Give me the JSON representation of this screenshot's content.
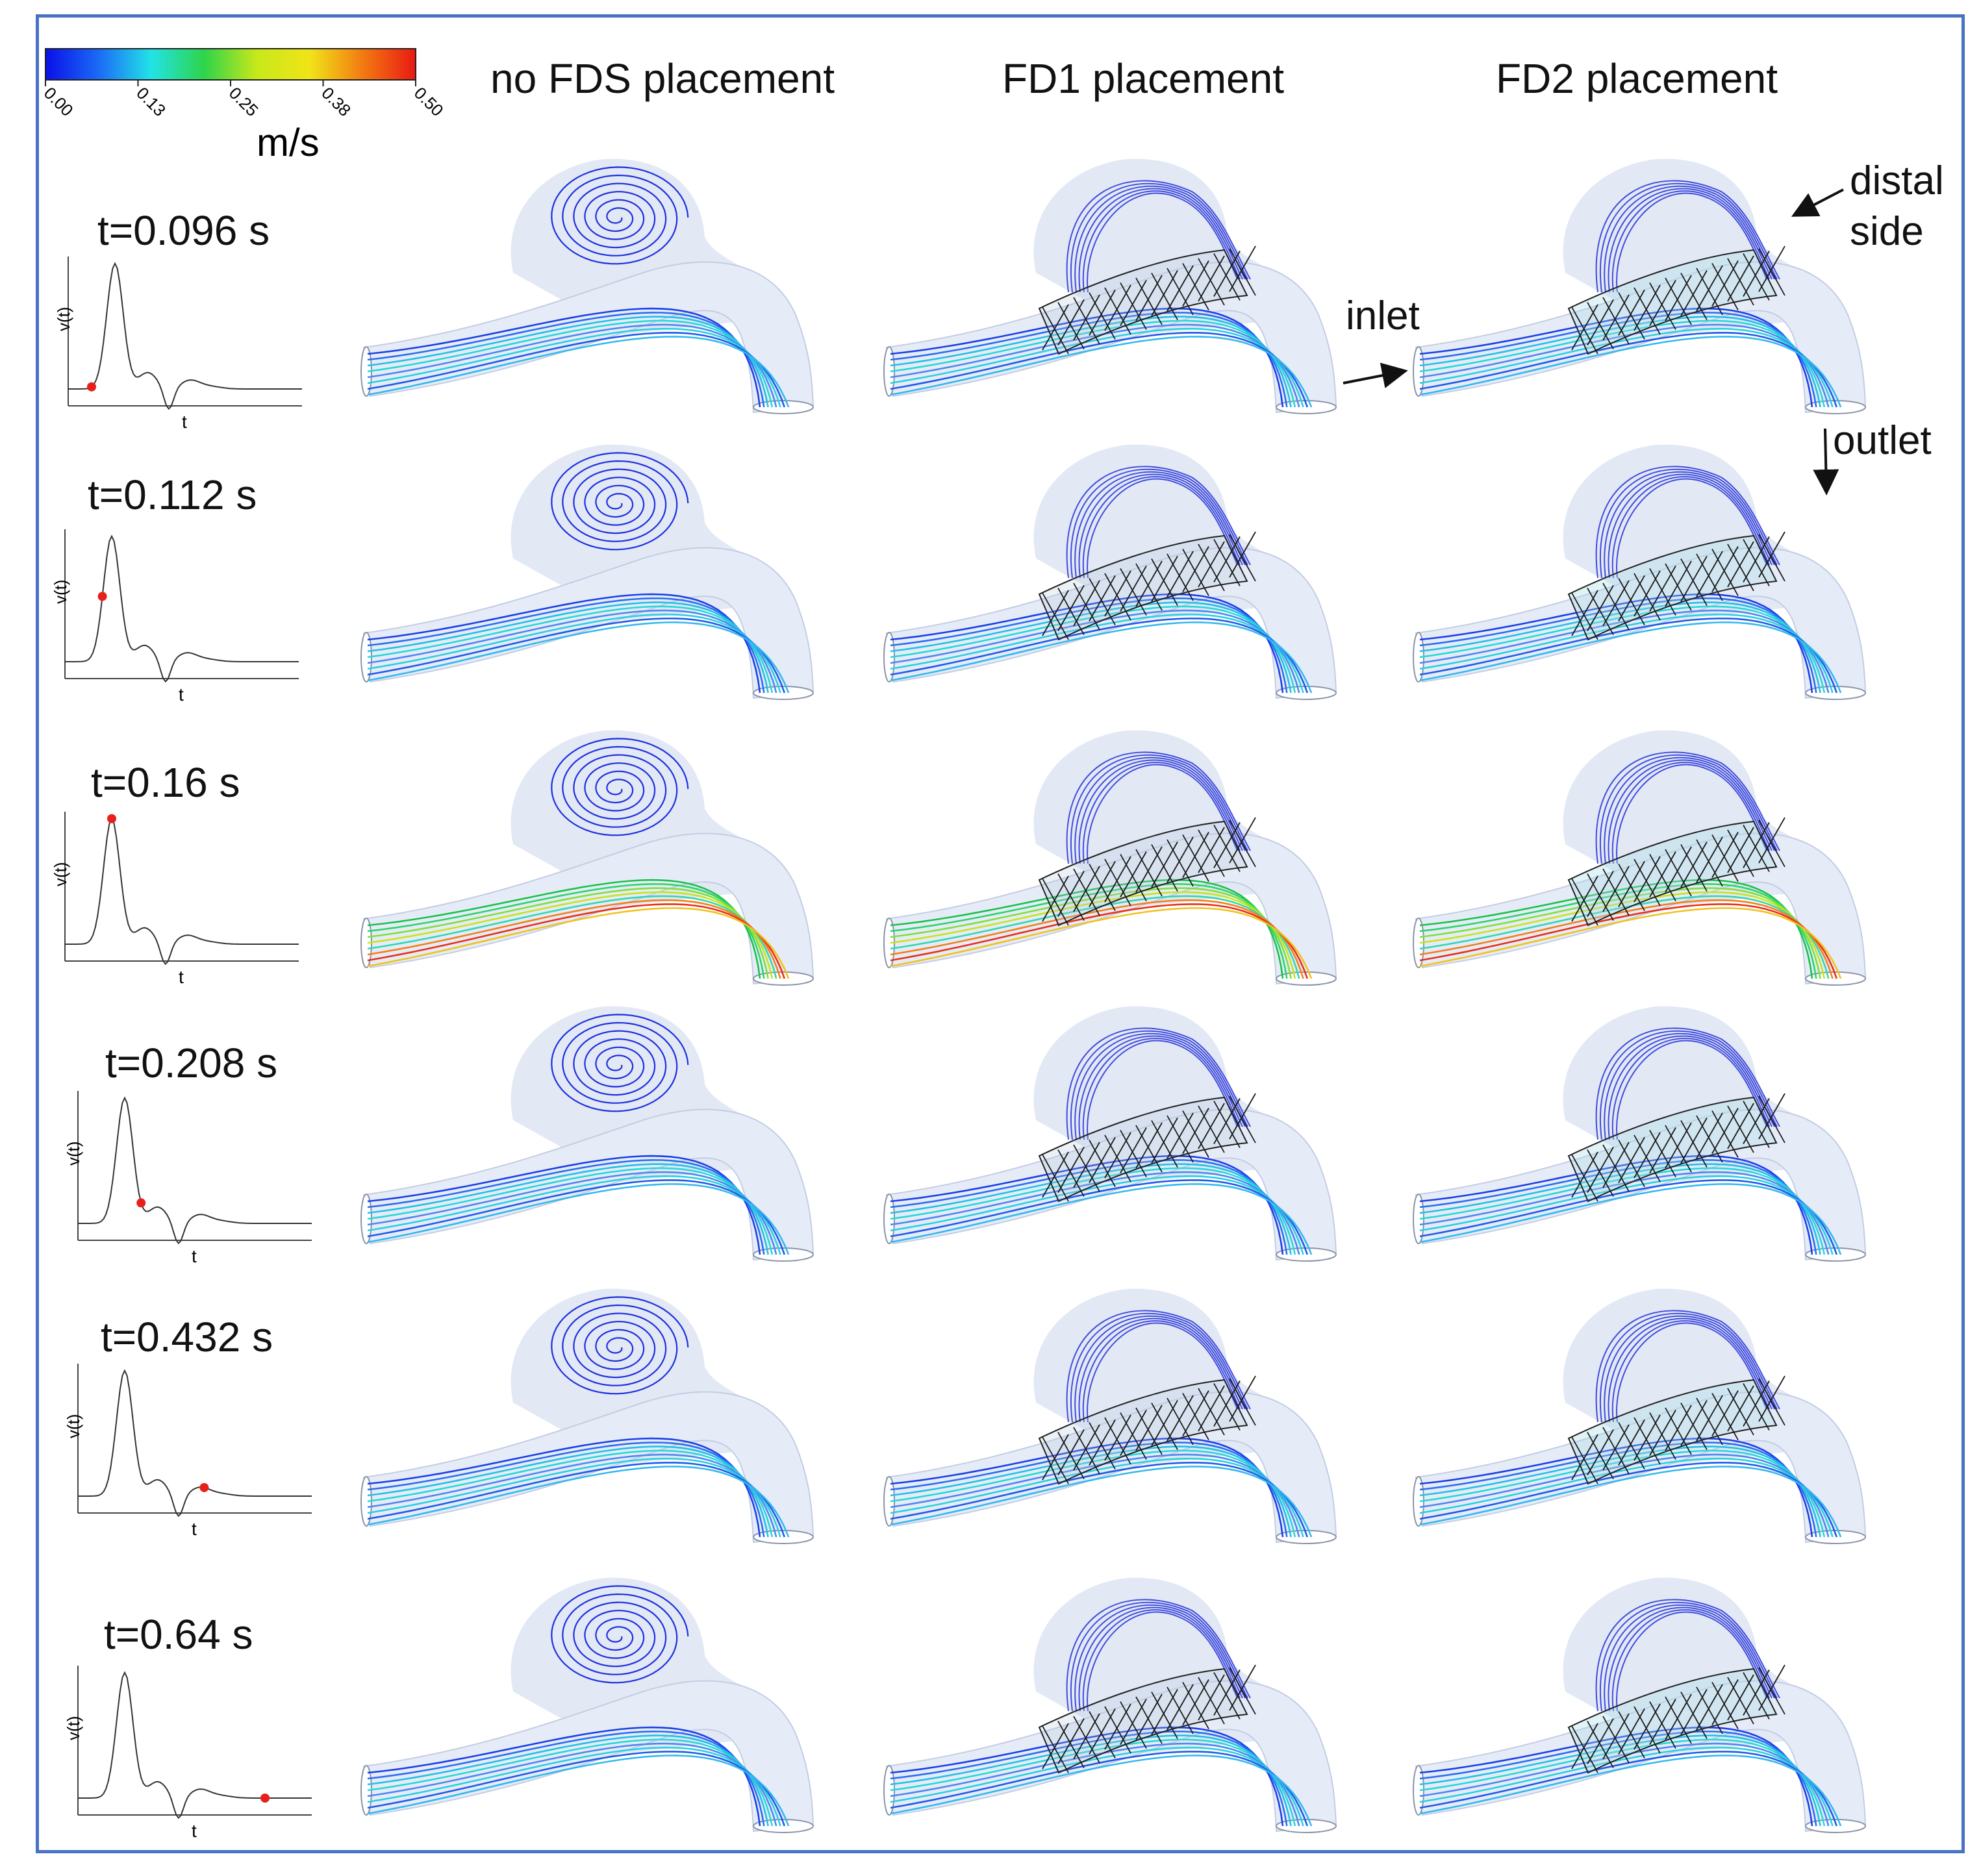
{
  "colorbar": {
    "unit": "m/s",
    "ticks": [
      "0.00",
      "0.13",
      "0.25",
      "0.38",
      "0.50"
    ],
    "colors": [
      "#0a10e8",
      "#1b6af5",
      "#22e3e6",
      "#2ed44a",
      "#c8e81a",
      "#f0e418",
      "#f27a12",
      "#e81a12"
    ]
  },
  "columns": [
    "no FDS placement",
    "FD1 placement",
    "FD2 placement"
  ],
  "rows": [
    {
      "time": "t=0.096 s",
      "marker": 0.1
    },
    {
      "time": "t=0.112 s",
      "marker": 0.16
    },
    {
      "time": "t=0.16 s",
      "marker": 0.2
    },
    {
      "time": "t=0.208 s",
      "marker": 0.27
    },
    {
      "time": "t=0.432 s",
      "marker": 0.54
    },
    {
      "time": "t=0.64 s",
      "marker": 0.8
    }
  ],
  "waveform": {
    "ylabel": "v(t)",
    "xlabel": "t"
  },
  "annotations": {
    "distal": "distal",
    "side": "side",
    "inlet": "inlet",
    "outlet": "outlet"
  }
}
